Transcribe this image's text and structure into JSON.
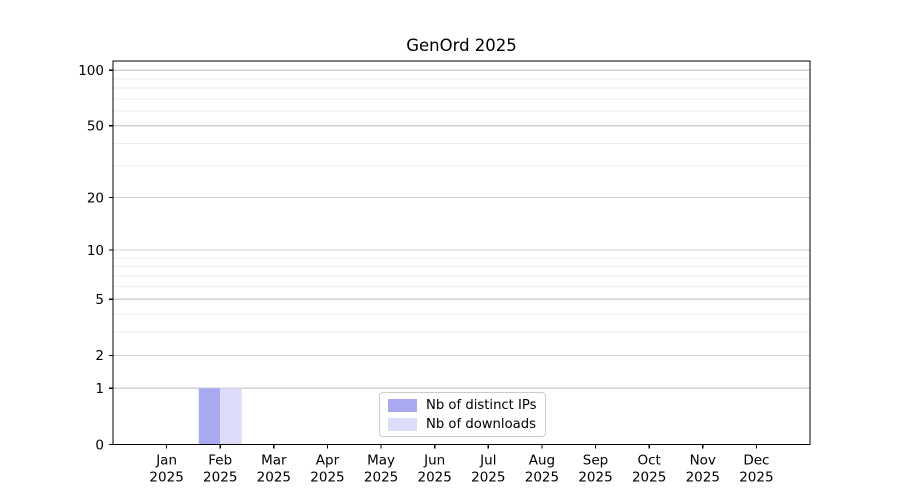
{
  "title": "GenOrd 2025",
  "chart_data": {
    "type": "bar",
    "title": "GenOrd 2025",
    "categories": [
      "Jan 2025",
      "Feb 2025",
      "Mar 2025",
      "Apr 2025",
      "May 2025",
      "Jun 2025",
      "Jul 2025",
      "Aug 2025",
      "Sep 2025",
      "Oct 2025",
      "Nov 2025",
      "Dec 2025"
    ],
    "x_tick_line1": [
      "Jan",
      "Feb",
      "Mar",
      "Apr",
      "May",
      "Jun",
      "Jul",
      "Aug",
      "Sep",
      "Oct",
      "Nov",
      "Dec"
    ],
    "x_tick_line2": [
      "2025",
      "2025",
      "2025",
      "2025",
      "2025",
      "2025",
      "2025",
      "2025",
      "2025",
      "2025",
      "2025",
      "2025"
    ],
    "series": [
      {
        "name": "Nb of distinct IPs",
        "color": "#a9a9f2",
        "values": [
          0,
          1,
          0,
          0,
          0,
          0,
          0,
          0,
          0,
          0,
          0,
          0
        ]
      },
      {
        "name": "Nb of downloads",
        "color": "#dcdcf9",
        "values": [
          0,
          1,
          0,
          0,
          0,
          0,
          0,
          0,
          0,
          0,
          0,
          0
        ]
      }
    ],
    "yscale": "log1p",
    "ylabel": "",
    "xlabel": "",
    "yticks": [
      0,
      1,
      2,
      5,
      10,
      20,
      50,
      100
    ],
    "y_minor_ticks": [
      3,
      4,
      6,
      7,
      8,
      9,
      30,
      40,
      60,
      70,
      80,
      90
    ],
    "ylim": [
      0,
      112
    ],
    "grid": true,
    "legend_position": "lower center",
    "colors": {
      "axis": "#000000",
      "major_grid": "#d2d2d2",
      "minor_grid": "#ededed",
      "tick_label": "#000000",
      "legend_border": "#cccccc",
      "legend_bg": "#ffffff"
    }
  }
}
